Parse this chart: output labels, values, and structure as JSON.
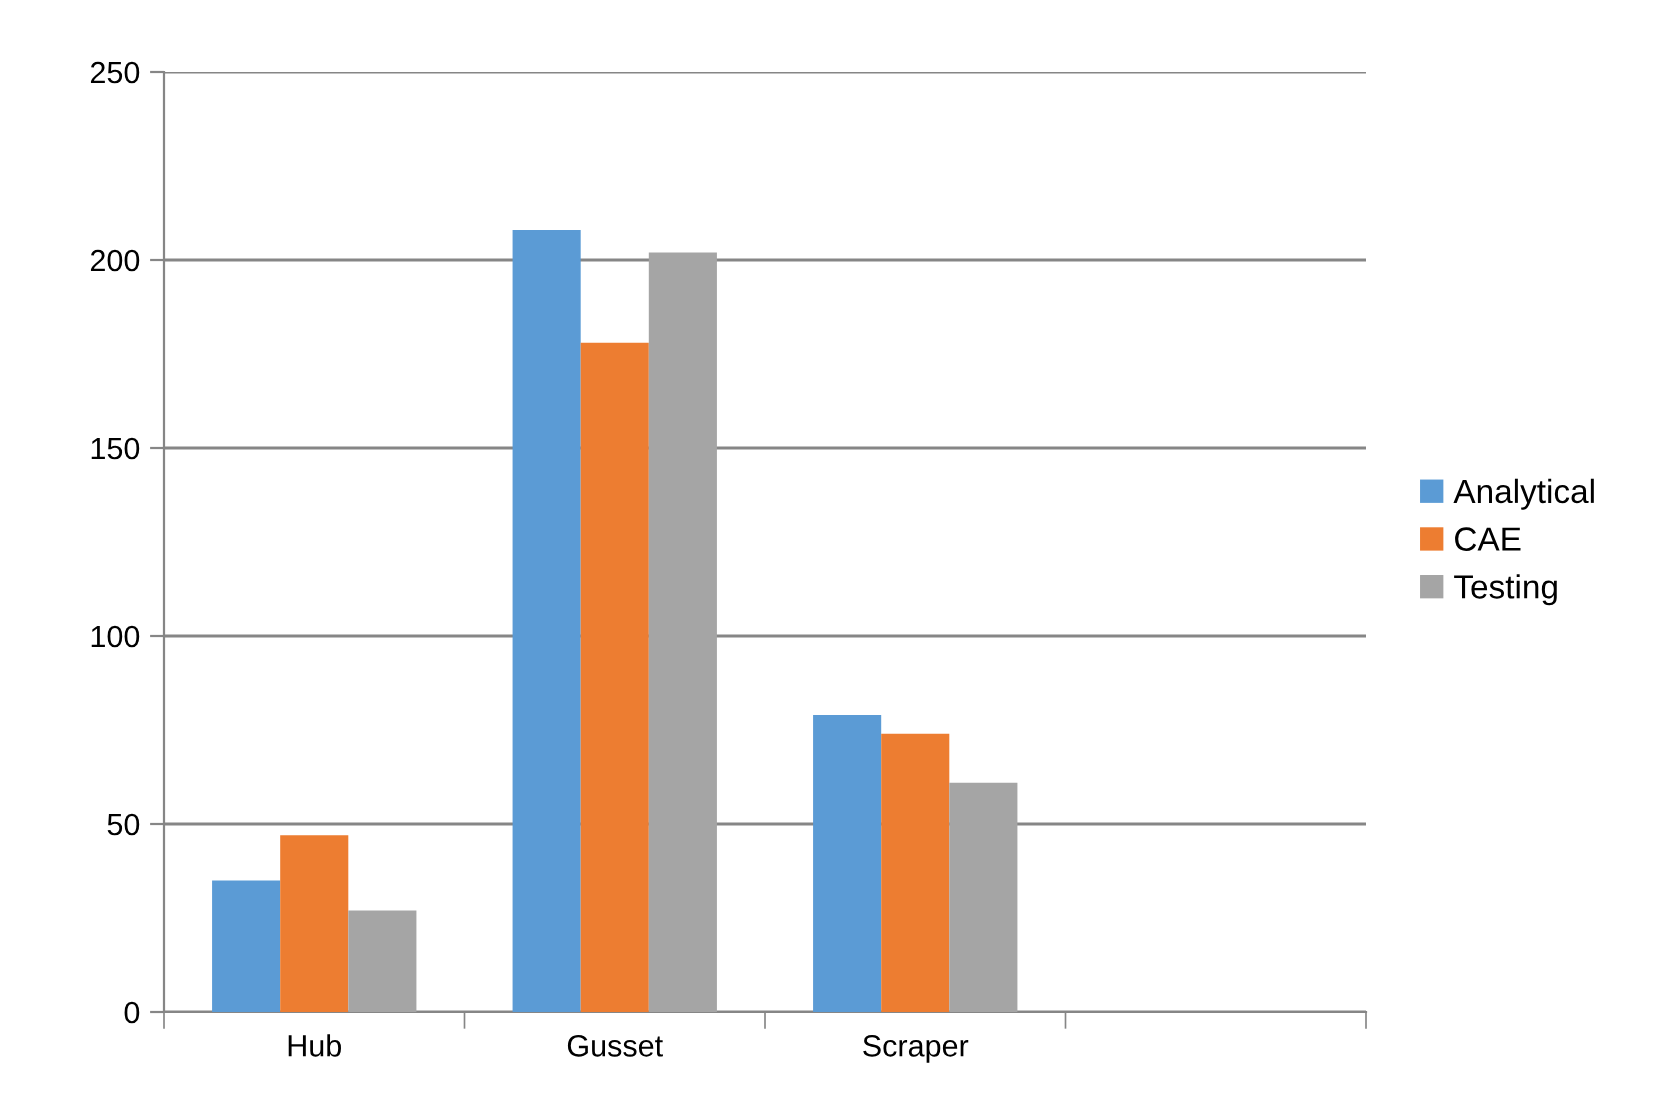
{
  "chart_data": {
    "type": "bar",
    "categories": [
      "Hub",
      "Gusset",
      "Scraper",
      null
    ],
    "series": [
      {
        "name": "Analytical",
        "color": "#5b9bd5",
        "values": [
          35,
          208,
          79,
          null
        ]
      },
      {
        "name": "CAE",
        "color": "#ed7d31",
        "values": [
          47,
          178,
          74,
          null
        ]
      },
      {
        "name": "Testing",
        "color": "#a5a5a5",
        "values": [
          27,
          202,
          61,
          null
        ]
      }
    ],
    "ylim": [
      0,
      250
    ],
    "yticks": [
      0,
      50,
      100,
      150,
      200,
      250
    ],
    "grid": "y",
    "legend": "right"
  }
}
